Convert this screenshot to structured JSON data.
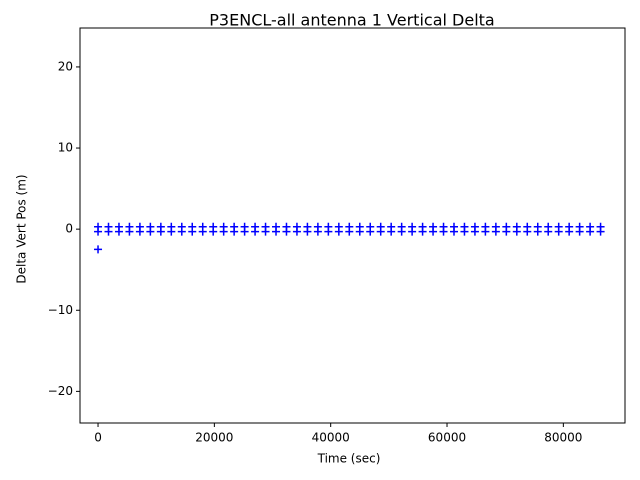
{
  "chart_data": {
    "type": "scatter",
    "title": "P3ENCL-all antenna 1 Vertical Delta",
    "x_label": "Time (sec)",
    "y_label": "Delta Vert Pos (m)",
    "color": "#0000ff",
    "marker": "+",
    "x": [
      0,
      1800,
      3600,
      5400,
      7200,
      9000,
      10800,
      12600,
      14400,
      16200,
      18000,
      19800,
      21600,
      23400,
      25200,
      27000,
      28800,
      30600,
      32400,
      34200,
      36000,
      37800,
      39600,
      41400,
      43200,
      45000,
      46800,
      48600,
      50400,
      52200,
      54000,
      55800,
      57600,
      59400,
      61200,
      63000,
      64800,
      66600,
      68400,
      70200,
      72000,
      73800,
      75600,
      77400,
      79200,
      81000,
      82800,
      84600,
      86400,
      0,
      1800,
      3600,
      5400,
      7200,
      9000,
      10800,
      12600,
      14400,
      16200,
      18000,
      19800,
      21600,
      23400,
      25200,
      27000,
      28800,
      30600,
      32400,
      34200,
      36000,
      37800,
      39600,
      41400,
      43200,
      45000,
      46800,
      48600,
      50400,
      52200,
      54000,
      55800,
      57600,
      59400,
      61200,
      63000,
      64800,
      66600,
      68400,
      70200,
      72000,
      73800,
      75600,
      77400,
      79200,
      81000,
      82800,
      84600,
      86400,
      0
    ],
    "y": [
      0.3,
      0.3,
      0.3,
      0.3,
      0.3,
      0.3,
      0.3,
      0.3,
      0.3,
      0.3,
      0.3,
      0.3,
      0.3,
      0.3,
      0.3,
      0.3,
      0.3,
      0.3,
      0.3,
      0.3,
      0.3,
      0.3,
      0.3,
      0.3,
      0.3,
      0.3,
      0.3,
      0.3,
      0.3,
      0.3,
      0.3,
      0.3,
      0.3,
      0.3,
      0.3,
      0.3,
      0.3,
      0.3,
      0.3,
      0.3,
      0.3,
      0.3,
      0.3,
      0.3,
      0.3,
      0.3,
      0.3,
      0.3,
      0.3,
      -0.3,
      -0.3,
      -0.3,
      -0.3,
      -0.3,
      -0.3,
      -0.3,
      -0.3,
      -0.3,
      -0.3,
      -0.3,
      -0.3,
      -0.3,
      -0.3,
      -0.3,
      -0.3,
      -0.3,
      -0.3,
      -0.3,
      -0.3,
      -0.3,
      -0.3,
      -0.3,
      -0.3,
      -0.3,
      -0.3,
      -0.3,
      -0.3,
      -0.3,
      -0.3,
      -0.3,
      -0.3,
      -0.3,
      -0.3,
      -0.3,
      -0.3,
      -0.3,
      -0.3,
      -0.3,
      -0.3,
      -0.3,
      -0.3,
      -0.3,
      -0.3,
      -0.3,
      -0.3,
      -0.3,
      -0.3,
      -0.3,
      -2.5
    ],
    "xlim": [
      -3100,
      90600
    ],
    "xticks": [
      0,
      20000,
      40000,
      60000,
      80000
    ],
    "ylim": [
      -23.9,
      24.8
    ],
    "yticks": [
      {
        "value": -20,
        "label": "−20"
      },
      {
        "value": -10,
        "label": "−10"
      },
      0,
      10,
      20
    ]
  }
}
